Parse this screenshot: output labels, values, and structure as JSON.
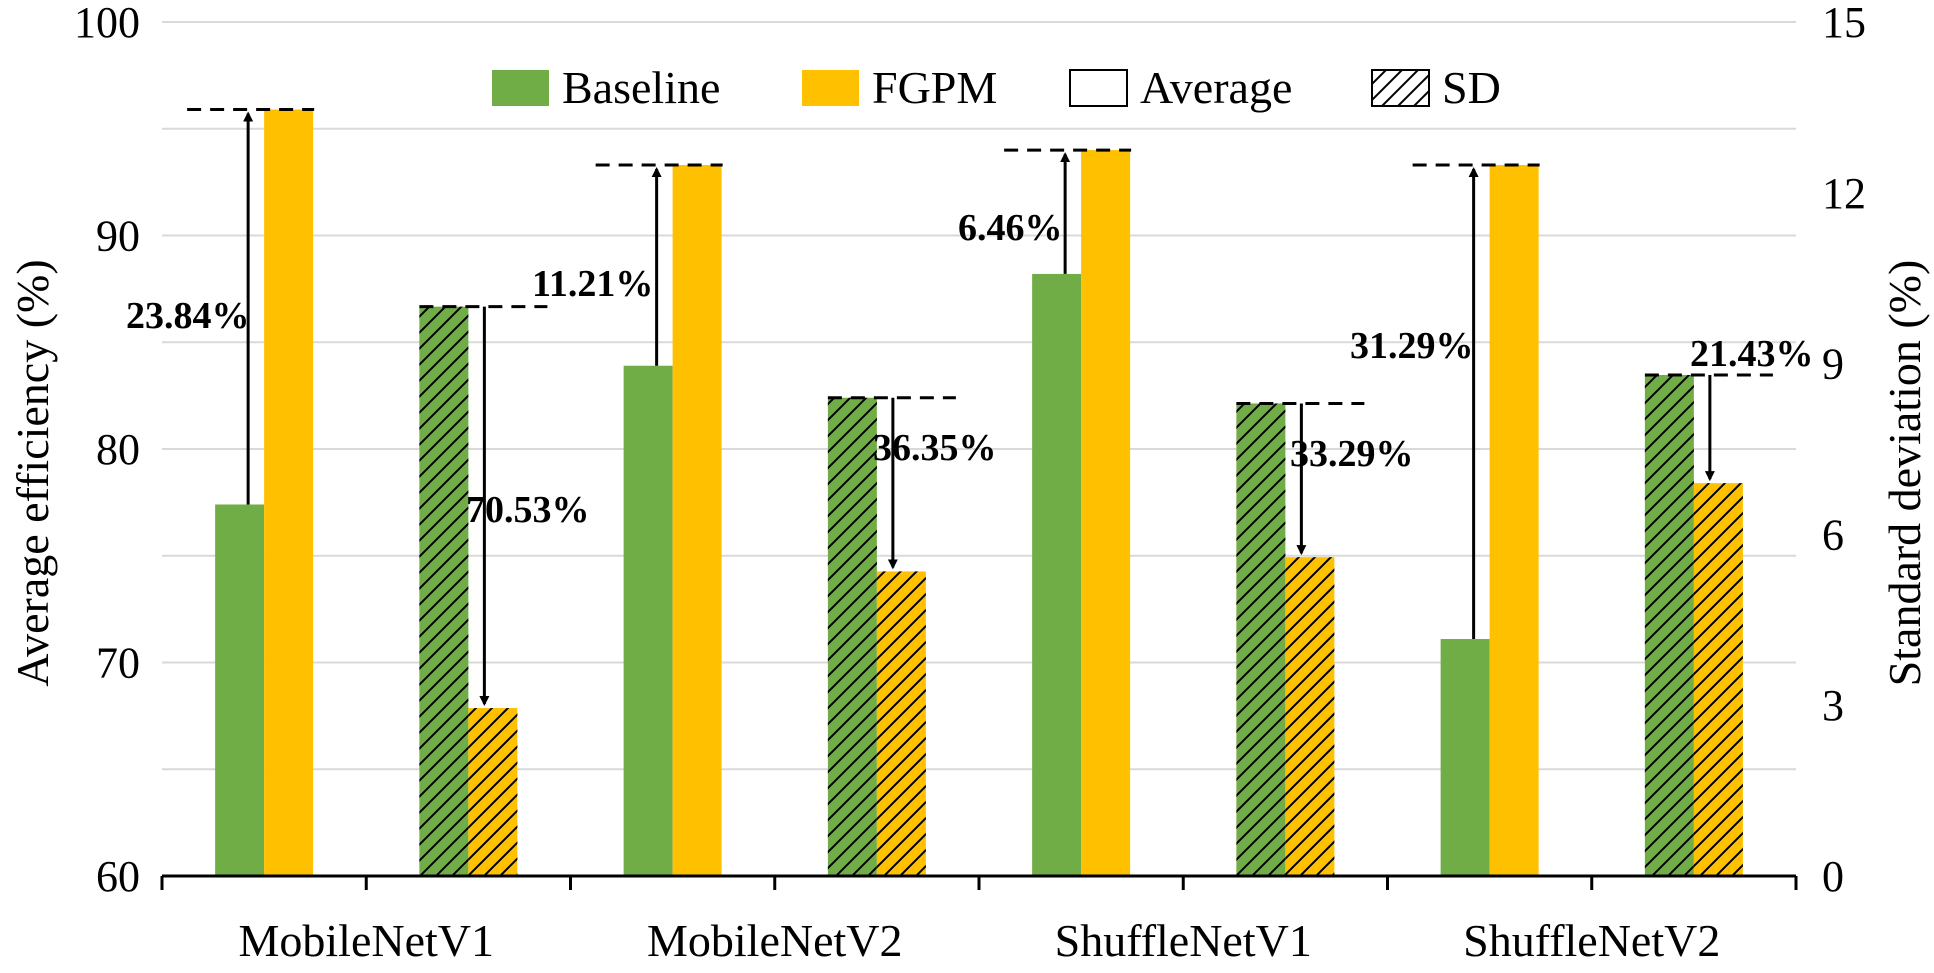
{
  "chart_data": {
    "type": "bar",
    "categories": [
      "MobileNetV1",
      "MobileNetV2",
      "ShuffleNetV1",
      "ShuffleNetV2"
    ],
    "left_axis": {
      "label": "Average efficiency (%)",
      "ylim": [
        60,
        100
      ],
      "ticks": [
        "60",
        "70",
        "80",
        "90",
        "100"
      ]
    },
    "right_axis": {
      "label": "Standard deviation (%)",
      "ylim": [
        0,
        15
      ],
      "ticks": [
        "0",
        "3",
        "6",
        "9",
        "12",
        "15"
      ]
    },
    "series": [
      {
        "name": "Baseline Average",
        "method": "Baseline",
        "metric": "Average",
        "axis": "left",
        "values": [
          77.4,
          83.9,
          88.2,
          71.1
        ]
      },
      {
        "name": "FGPM Average",
        "method": "FGPM",
        "metric": "Average",
        "axis": "left",
        "values": [
          95.9,
          93.3,
          94.0,
          93.3
        ]
      },
      {
        "name": "Baseline SD",
        "method": "Baseline",
        "metric": "SD",
        "axis": "right",
        "values": [
          10.0,
          8.4,
          8.3,
          8.8
        ]
      },
      {
        "name": "FGPM SD",
        "method": "FGPM",
        "metric": "SD",
        "axis": "right",
        "values": [
          2.95,
          5.35,
          5.6,
          6.9
        ]
      }
    ],
    "annotations": {
      "average_gain": [
        "23.84%",
        "11.21%",
        "6.46%",
        "31.29%"
      ],
      "sd_reduction": [
        "70.53%",
        "36.35%",
        "33.29%",
        "21.43%"
      ]
    },
    "legend": {
      "position": "top-center",
      "items": [
        {
          "label": "Baseline",
          "kind": "fill",
          "color": "#70AD47"
        },
        {
          "label": "FGPM",
          "kind": "fill",
          "color": "#FFC000"
        },
        {
          "label": "Average",
          "kind": "outline"
        },
        {
          "label": "SD",
          "kind": "hatch"
        }
      ]
    },
    "colors": {
      "baseline": "#70AD47",
      "fgpm": "#FFC000",
      "grid": "#D9D9D9"
    },
    "grid": true
  }
}
